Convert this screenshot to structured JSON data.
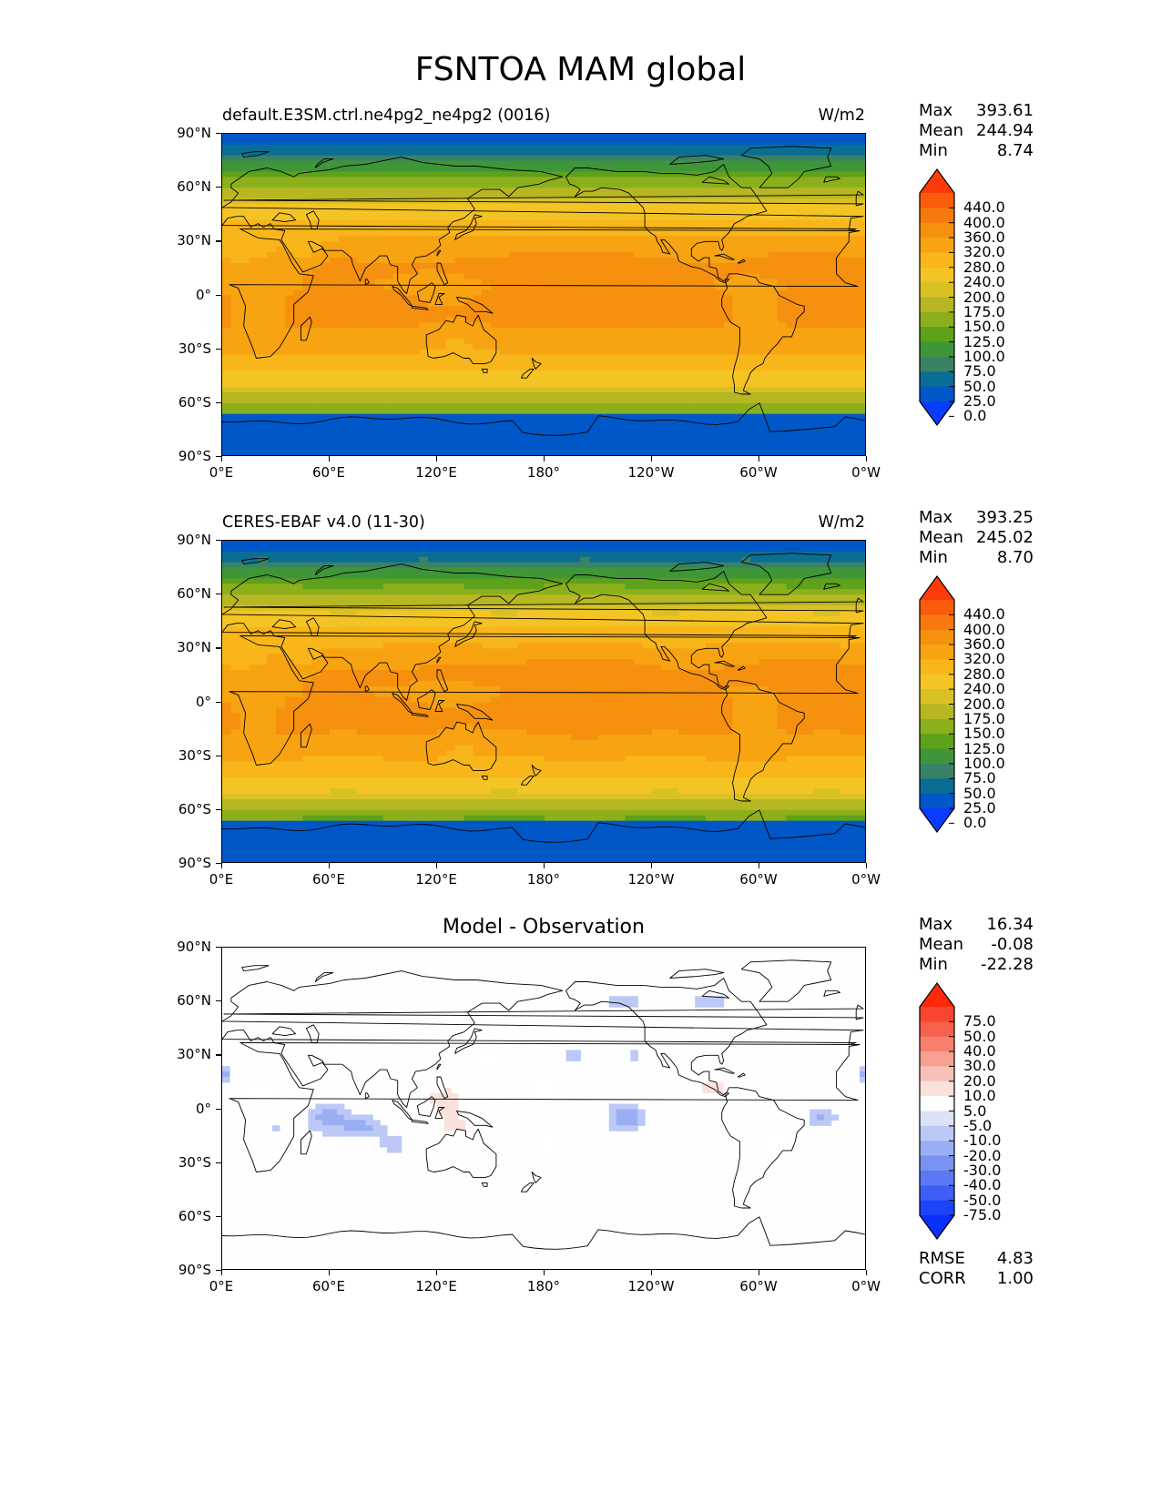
{
  "figure": {
    "title": "FSNTOA MAM global"
  },
  "axes": {
    "lat_ticks": [
      "90°N",
      "60°N",
      "30°N",
      "0°",
      "30°S",
      "60°S",
      "90°S"
    ],
    "lon_ticks": [
      "0°E",
      "60°E",
      "120°E",
      "180°",
      "120°W",
      "60°W",
      "0°W"
    ]
  },
  "panels": [
    {
      "label": "default.E3SM.ctrl.ne4pg2_ne4pg2 (0016)",
      "units": "W/m2",
      "stats": {
        "max_label": "Max",
        "max": "393.61",
        "mean_label": "Mean",
        "mean": "244.94",
        "min_label": "Min",
        "min": "8.74"
      }
    },
    {
      "label": "CERES-EBAF v4.0 (11-30)",
      "units": "W/m2",
      "stats": {
        "max_label": "Max",
        "max": "393.25",
        "mean_label": "Mean",
        "mean": "245.02",
        "min_label": "Min",
        "min": "8.70"
      }
    },
    {
      "title": "Model - Observation",
      "stats": {
        "max_label": "Max",
        "max": "16.34",
        "mean_label": "Mean",
        "mean": "-0.08",
        "min_label": "Min",
        "min": "-22.28"
      },
      "errors": {
        "rmse_label": "RMSE",
        "rmse": "4.83",
        "corr_label": "CORR",
        "corr": "1.00"
      }
    }
  ],
  "colorbars": {
    "field": {
      "labels": [
        "440.0",
        "400.0",
        "360.0",
        "320.0",
        "280.0",
        "240.0",
        "200.0",
        "175.0",
        "150.0",
        "125.0",
        "100.0",
        "75.0",
        "50.0",
        "25.0",
        "0.0"
      ],
      "colors": [
        "#ff3a0a",
        "#fb5c0c",
        "#f7780e",
        "#f6900f",
        "#f7a312",
        "#f8b61b",
        "#f4c425",
        "#d9c125",
        "#b6b722",
        "#8bb01c",
        "#5ea11a",
        "#3f9639",
        "#3a8265",
        "#0a6e94",
        "#0058c8",
        "#0a3cff"
      ]
    },
    "diff": {
      "labels": [
        "75.0",
        "50.0",
        "40.0",
        "30.0",
        "20.0",
        "10.0",
        "5.0",
        "-5.0",
        "-10.0",
        "-20.0",
        "-30.0",
        "-40.0",
        "-50.0",
        "-75.0"
      ],
      "colors": [
        "#ff2a0a",
        "#f74530",
        "#f5614c",
        "#f7806d",
        "#f8a092",
        "#f8c1b7",
        "#fbe1db",
        "#ffffff",
        "#dce2f7",
        "#bcc8f5",
        "#9aaef3",
        "#7991f1",
        "#5c78f2",
        "#3d5ff5",
        "#1c44f8",
        "#0a30ff"
      ]
    }
  },
  "chart_data": {
    "type": "heatmap",
    "description_fields": [
      "FSNTOA",
      "MAM",
      "global"
    ],
    "x_range": [
      0,
      360
    ],
    "y_range": [
      -90,
      90
    ],
    "panels": [
      {
        "name": "default.E3SM.ctrl.ne4pg2_ne4pg2 (0016)",
        "units": "W/m2",
        "max": 393.61,
        "mean": 244.94,
        "min": 8.74
      },
      {
        "name": "CERES-EBAF v4.0 (11-30)",
        "units": "W/m2",
        "max": 393.25,
        "mean": 245.02,
        "min": 8.7
      },
      {
        "name": "Model - Observation",
        "max": 16.34,
        "mean": -0.08,
        "min": -22.28,
        "rmse": 4.83,
        "corr": 1.0
      }
    ],
    "field_levels": [
      0,
      25,
      50,
      75,
      100,
      125,
      150,
      175,
      200,
      240,
      280,
      320,
      360,
      400,
      440
    ],
    "diff_levels": [
      -75,
      -50,
      -40,
      -30,
      -20,
      -10,
      -5,
      5,
      10,
      20,
      30,
      40,
      50,
      75
    ]
  }
}
